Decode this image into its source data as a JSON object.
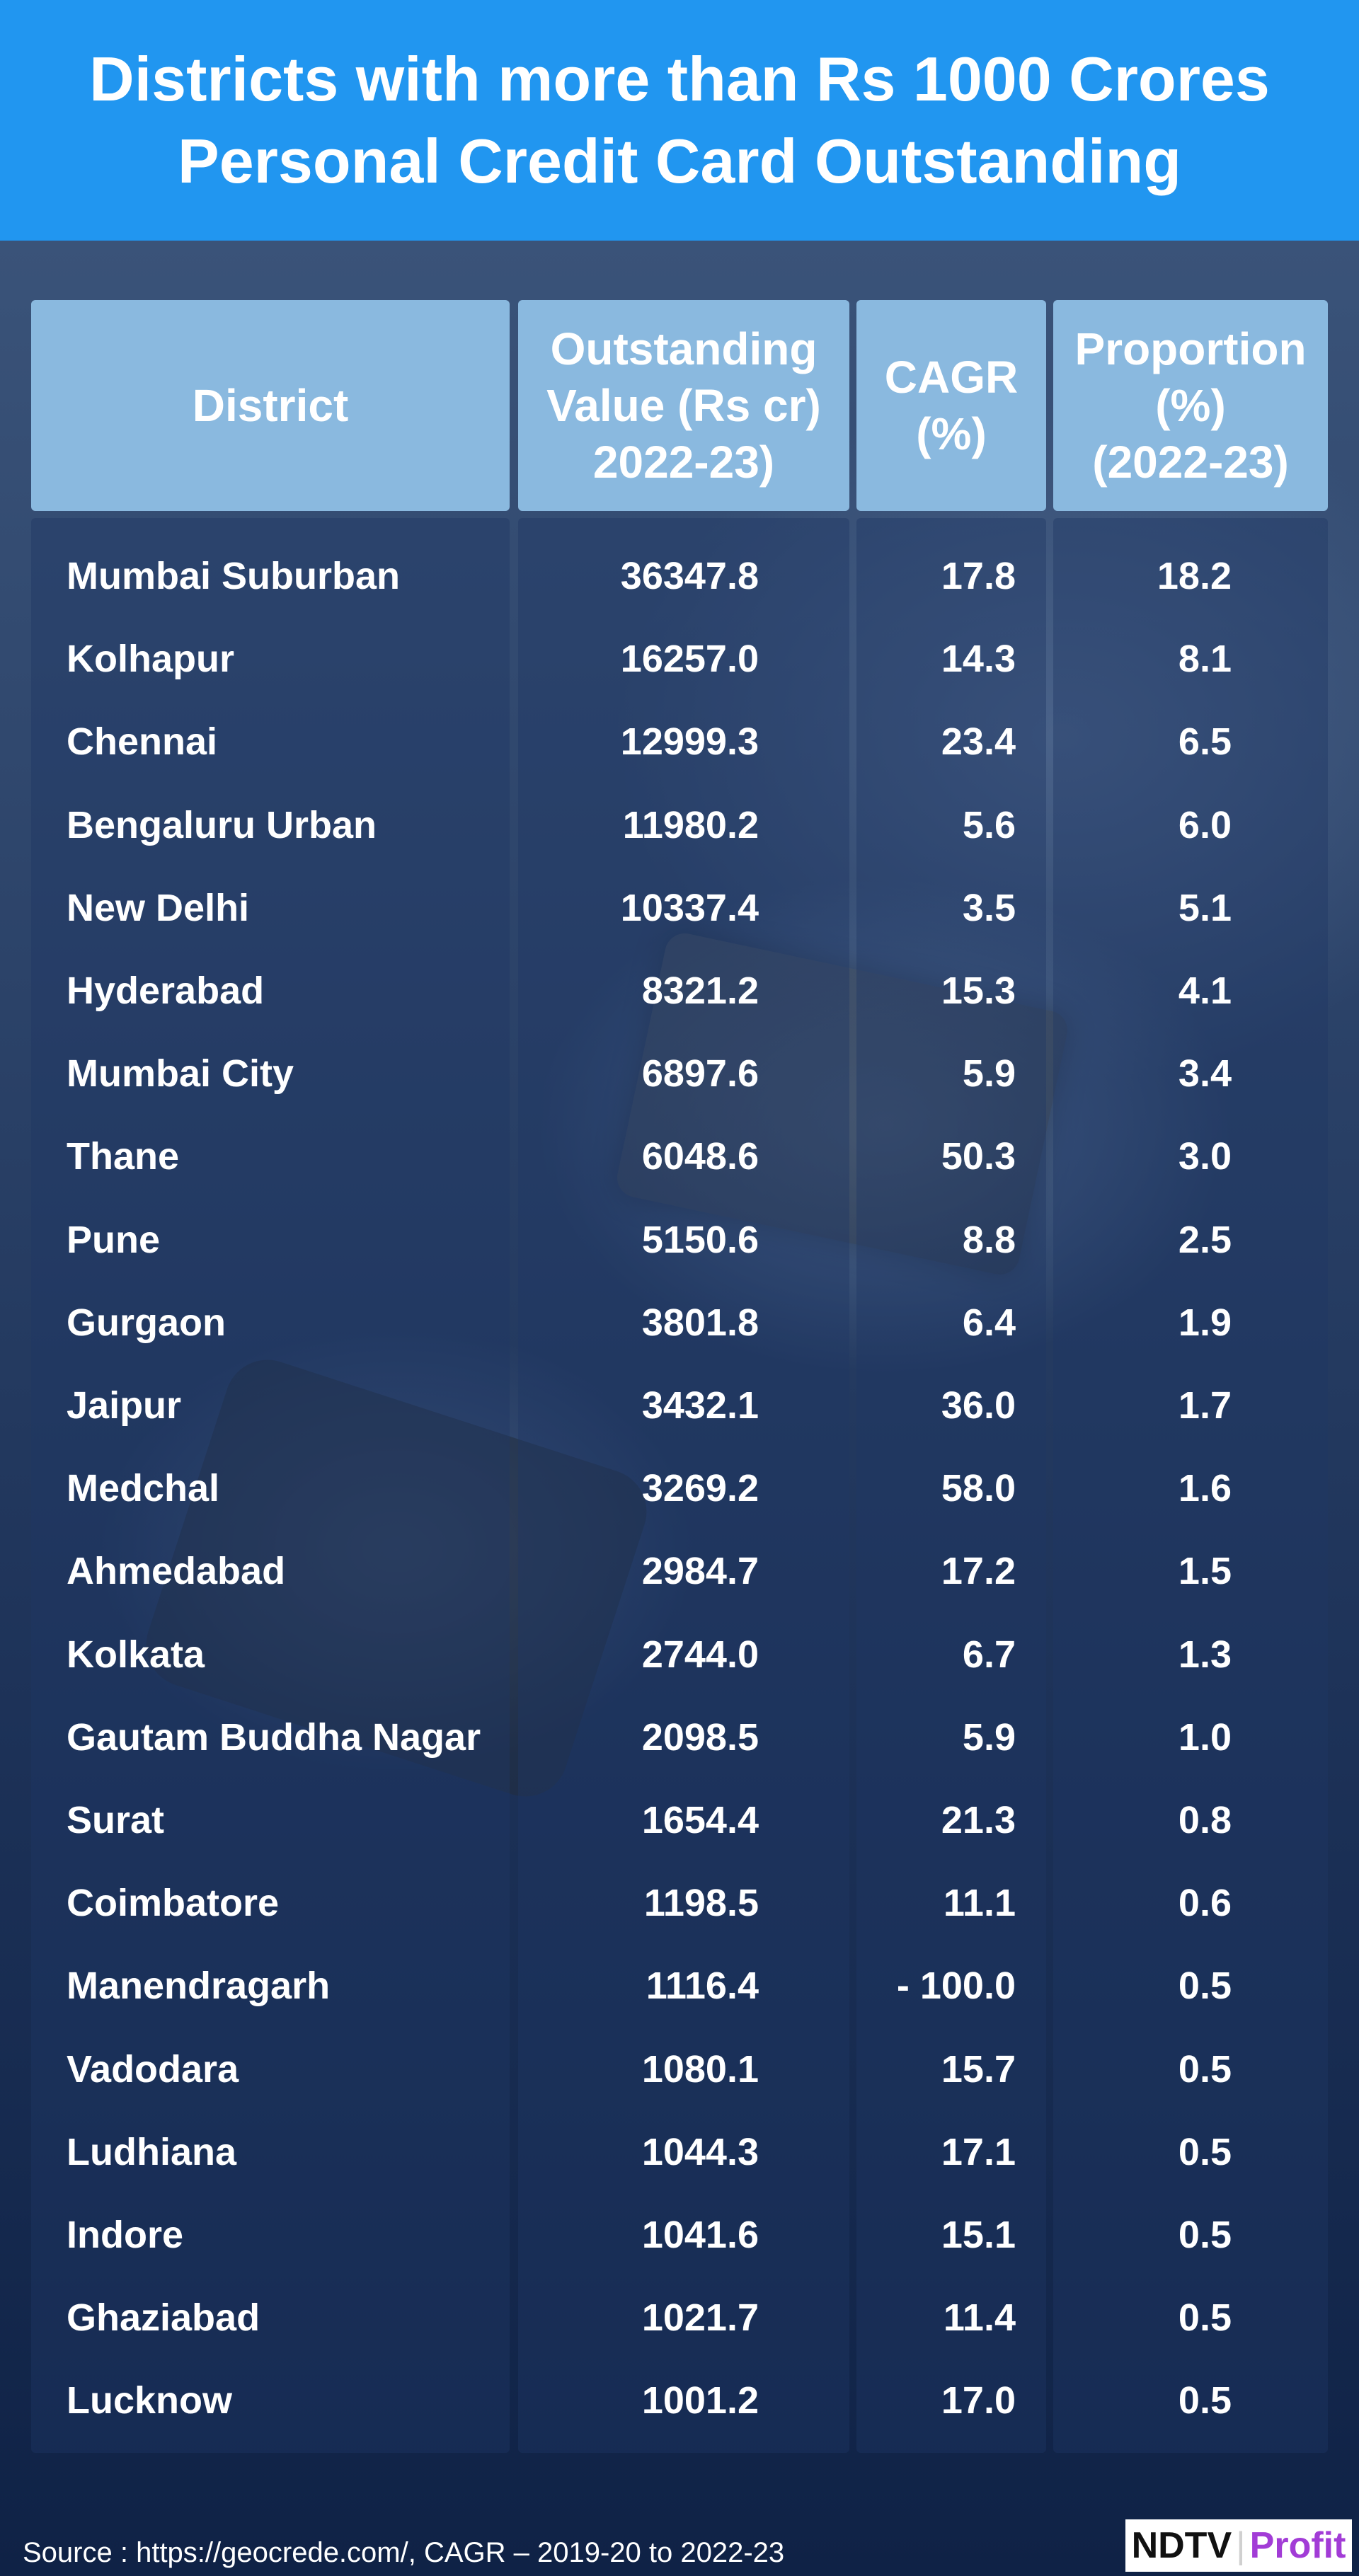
{
  "chart_data": {
    "type": "table",
    "title": "Districts with more than Rs 1000 Crores Personal Credit Card Outstanding",
    "title_lines": [
      "Districts with more than Rs 1000 Crores",
      "Personal Credit Card Outstanding"
    ],
    "columns": [
      {
        "key": "district",
        "label_lines": [
          "District"
        ]
      },
      {
        "key": "value",
        "label_lines": [
          "Outstanding",
          "Value (Rs cr)",
          "2022-23)"
        ]
      },
      {
        "key": "cagr",
        "label_lines": [
          "CAGR",
          "(%)"
        ]
      },
      {
        "key": "proportion",
        "label_lines": [
          "Proportion",
          "(%)",
          "(2022-23)"
        ]
      }
    ],
    "rows": [
      {
        "district": "Mumbai Suburban",
        "value": "36347.8",
        "cagr": "17.8",
        "proportion": "18.2"
      },
      {
        "district": "Kolhapur",
        "value": "16257.0",
        "cagr": "14.3",
        "proportion": "8.1"
      },
      {
        "district": "Chennai",
        "value": "12999.3",
        "cagr": "23.4",
        "proportion": "6.5"
      },
      {
        "district": "Bengaluru Urban",
        "value": "11980.2",
        "cagr": "5.6",
        "proportion": "6.0"
      },
      {
        "district": "New Delhi",
        "value": "10337.4",
        "cagr": "3.5",
        "proportion": "5.1"
      },
      {
        "district": "Hyderabad",
        "value": "8321.2",
        "cagr": "15.3",
        "proportion": "4.1"
      },
      {
        "district": "Mumbai City",
        "value": "6897.6",
        "cagr": "5.9",
        "proportion": "3.4"
      },
      {
        "district": "Thane",
        "value": "6048.6",
        "cagr": "50.3",
        "proportion": "3.0"
      },
      {
        "district": "Pune",
        "value": "5150.6",
        "cagr": "8.8",
        "proportion": "2.5"
      },
      {
        "district": "Gurgaon",
        "value": "3801.8",
        "cagr": "6.4",
        "proportion": "1.9"
      },
      {
        "district": "Jaipur",
        "value": "3432.1",
        "cagr": "36.0",
        "proportion": "1.7"
      },
      {
        "district": "Medchal",
        "value": "3269.2",
        "cagr": "58.0",
        "proportion": "1.6"
      },
      {
        "district": "Ahmedabad",
        "value": "2984.7",
        "cagr": "17.2",
        "proportion": "1.5"
      },
      {
        "district": "Kolkata",
        "value": "2744.0",
        "cagr": "6.7",
        "proportion": "1.3"
      },
      {
        "district": "Gautam Buddha Nagar",
        "value": "2098.5",
        "cagr": "5.9",
        "proportion": "1.0"
      },
      {
        "district": "Surat",
        "value": "1654.4",
        "cagr": "21.3",
        "proportion": "0.8"
      },
      {
        "district": "Coimbatore",
        "value": "1198.5",
        "cagr": "11.1",
        "proportion": "0.6"
      },
      {
        "district": "Manendragarh",
        "value": "1116.4",
        "cagr": "- 100.0",
        "proportion": "0.5"
      },
      {
        "district": "Vadodara",
        "value": "1080.1",
        "cagr": "15.7",
        "proportion": "0.5"
      },
      {
        "district": "Ludhiana",
        "value": "1044.3",
        "cagr": "17.1",
        "proportion": "0.5"
      },
      {
        "district": "Indore",
        "value": "1041.6",
        "cagr": "15.1",
        "proportion": "0.5"
      },
      {
        "district": "Ghaziabad",
        "value": "1021.7",
        "cagr": "11.4",
        "proportion": "0.5"
      },
      {
        "district": "Lucknow",
        "value": "1001.2",
        "cagr": "17.0",
        "proportion": "0.5"
      }
    ]
  },
  "footer": {
    "source": "Source : https://geocrede.com/, CAGR – 2019-20 to 2022-23",
    "logo_left": "NDTV",
    "logo_sep": "|",
    "logo_right": "Profit"
  },
  "colors": {
    "banner": "#2196f0",
    "header_cell": "#8ab9df",
    "logo_accent": "#a23cd6"
  }
}
